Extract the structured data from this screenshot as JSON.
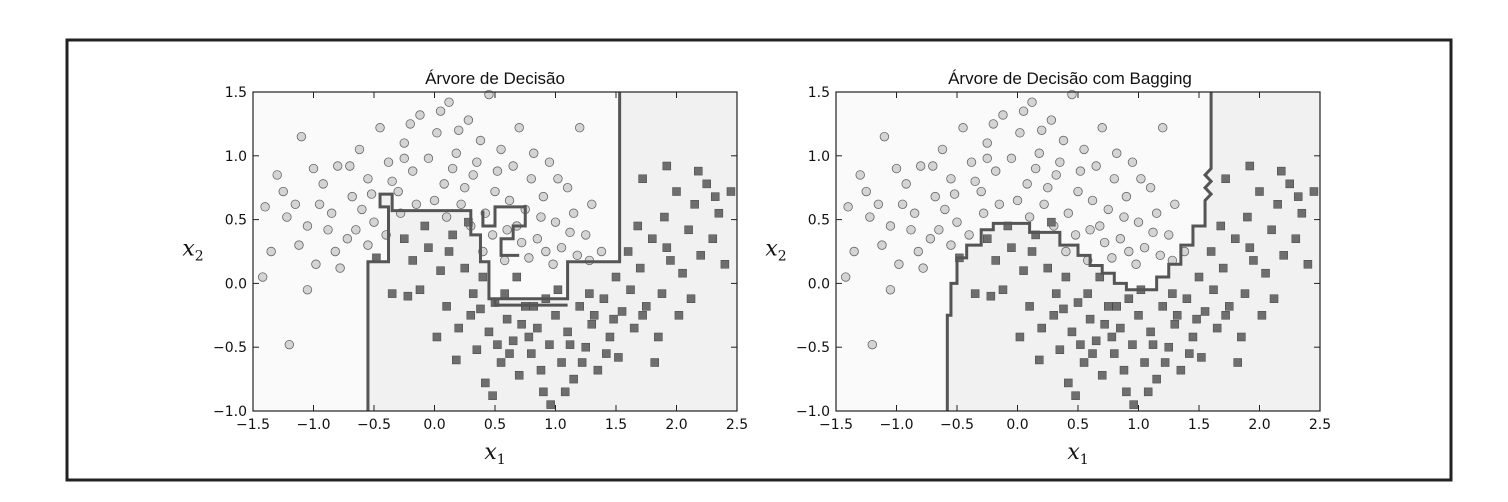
{
  "chart_data": [
    {
      "type": "scatter",
      "title": "Árvore de Decisão",
      "xlabel": "x",
      "xlabel_sub": "1",
      "ylabel": "x",
      "ylabel_sub": "2",
      "xlim": [
        -1.5,
        2.5
      ],
      "ylim": [
        -1.0,
        1.5
      ],
      "xticks": [
        "−1.5",
        "−1.0",
        "−0.5",
        "0.0",
        "0.5",
        "1.0",
        "1.5",
        "2.0",
        "2.5"
      ],
      "yticks": [
        "−1.0",
        "−0.5",
        "0.0",
        "0.5",
        "1.0",
        "1.5"
      ],
      "grid": false,
      "decision_boundary": [
        [
          -0.55,
          -1.0
        ],
        [
          -0.55,
          0.17
        ],
        [
          -0.38,
          0.17
        ],
        [
          -0.38,
          0.6
        ],
        [
          -0.45,
          0.6
        ],
        [
          -0.45,
          0.7
        ],
        [
          -0.35,
          0.7
        ],
        [
          -0.35,
          0.57
        ],
        [
          0.3,
          0.57
        ],
        [
          0.3,
          0.38
        ],
        [
          0.38,
          0.38
        ],
        [
          0.38,
          0.17
        ],
        [
          0.45,
          0.17
        ],
        [
          0.45,
          -0.12
        ],
        [
          1.1,
          -0.12
        ],
        [
          1.1,
          0.17
        ],
        [
          1.53,
          0.17
        ],
        [
          1.53,
          1.5
        ]
      ],
      "boundary_islands": [
        [
          [
            0.4,
            0.57
          ],
          [
            0.4,
            0.45
          ],
          [
            0.5,
            0.45
          ],
          [
            0.5,
            0.6
          ],
          [
            0.75,
            0.6
          ],
          [
            0.75,
            0.45
          ],
          [
            0.65,
            0.45
          ],
          [
            0.65,
            0.35
          ],
          [
            0.55,
            0.35
          ],
          [
            0.55,
            0.22
          ],
          [
            0.7,
            0.22
          ]
        ],
        [
          [
            0.5,
            -0.12
          ],
          [
            0.5,
            -0.17
          ],
          [
            1.1,
            -0.17
          ]
        ]
      ]
    },
    {
      "type": "scatter",
      "title": "Árvore de Decisão com  Bagging",
      "xlabel": "x",
      "xlabel_sub": "1",
      "ylabel": "x",
      "ylabel_sub": "2",
      "xlim": [
        -1.5,
        2.5
      ],
      "ylim": [
        -1.0,
        1.5
      ],
      "xticks": [
        "−1.5",
        "−1.0",
        "−0.5",
        "0.0",
        "0.5",
        "1.0",
        "1.5",
        "2.0",
        "2.5"
      ],
      "yticks": [
        "−1.0",
        "−0.5",
        "0.0",
        "0.5",
        "1.0",
        "1.5"
      ],
      "grid": false,
      "decision_boundary": [
        [
          -0.58,
          -1.0
        ],
        [
          -0.58,
          -0.25
        ],
        [
          -0.55,
          -0.25
        ],
        [
          -0.55,
          0.0
        ],
        [
          -0.5,
          0.0
        ],
        [
          -0.5,
          0.2
        ],
        [
          -0.42,
          0.2
        ],
        [
          -0.42,
          0.3
        ],
        [
          -0.3,
          0.3
        ],
        [
          -0.3,
          0.42
        ],
        [
          -0.2,
          0.42
        ],
        [
          -0.2,
          0.47
        ],
        [
          0.1,
          0.47
        ],
        [
          0.1,
          0.4
        ],
        [
          0.35,
          0.4
        ],
        [
          0.35,
          0.3
        ],
        [
          0.5,
          0.3
        ],
        [
          0.5,
          0.22
        ],
        [
          0.6,
          0.22
        ],
        [
          0.6,
          0.14
        ],
        [
          0.7,
          0.14
        ],
        [
          0.7,
          0.08
        ],
        [
          0.8,
          0.08
        ],
        [
          0.8,
          0.0
        ],
        [
          0.9,
          0.0
        ],
        [
          0.9,
          -0.05
        ],
        [
          1.15,
          -0.05
        ],
        [
          1.15,
          0.05
        ],
        [
          1.25,
          0.05
        ],
        [
          1.25,
          0.15
        ],
        [
          1.35,
          0.15
        ],
        [
          1.35,
          0.3
        ],
        [
          1.45,
          0.3
        ],
        [
          1.45,
          0.45
        ],
        [
          1.55,
          0.45
        ],
        [
          1.55,
          0.65
        ],
        [
          1.6,
          0.7
        ],
        [
          1.55,
          0.75
        ],
        [
          1.6,
          0.8
        ],
        [
          1.55,
          0.85
        ],
        [
          1.6,
          0.9
        ],
        [
          1.6,
          1.5
        ]
      ],
      "boundary_islands": []
    }
  ],
  "scatter_points": {
    "class_0_marker": "circle",
    "class_1_marker": "square",
    "class_0_color": "#cfcfcf",
    "class_1_color": "#6e6e6e",
    "class_0": [
      [
        -1.42,
        0.05
      ],
      [
        -1.35,
        0.25
      ],
      [
        -1.22,
        0.52
      ],
      [
        -1.15,
        0.62
      ],
      [
        -1.1,
        1.15
      ],
      [
        -1.05,
        0.45
      ],
      [
        -0.98,
        0.15
      ],
      [
        -0.92,
        0.78
      ],
      [
        -0.85,
        0.55
      ],
      [
        -0.8,
        0.92
      ],
      [
        -0.72,
        0.35
      ],
      [
        -0.68,
        0.68
      ],
      [
        -0.62,
        1.05
      ],
      [
        -0.55,
        0.82
      ],
      [
        -0.5,
        0.48
      ],
      [
        -0.45,
        1.22
      ],
      [
        -0.38,
        0.95
      ],
      [
        -0.3,
        0.72
      ],
      [
        -0.25,
        1.1
      ],
      [
        -0.18,
        0.88
      ],
      [
        -0.12,
        1.32
      ],
      [
        -0.05,
        0.98
      ],
      [
        0.02,
        1.18
      ],
      [
        0.08,
        0.78
      ],
      [
        0.12,
        1.42
      ],
      [
        0.18,
        1.02
      ],
      [
        0.22,
        0.62
      ],
      [
        0.28,
        1.28
      ],
      [
        0.32,
        0.85
      ],
      [
        0.38,
        1.12
      ],
      [
        0.42,
        0.55
      ],
      [
        0.45,
        1.48
      ],
      [
        0.5,
        0.72
      ],
      [
        0.55,
        1.05
      ],
      [
        0.6,
        0.42
      ],
      [
        0.65,
        0.92
      ],
      [
        0.7,
        1.22
      ],
      [
        0.75,
        0.58
      ],
      [
        0.8,
        0.82
      ],
      [
        0.85,
        0.35
      ],
      [
        0.9,
        0.68
      ],
      [
        0.95,
        0.95
      ],
      [
        1.0,
        0.48
      ],
      [
        1.05,
        0.28
      ],
      [
        1.1,
        0.75
      ],
      [
        1.15,
        0.55
      ],
      [
        1.2,
        1.22
      ],
      [
        1.25,
        0.38
      ],
      [
        1.3,
        0.62
      ],
      [
        1.38,
        0.25
      ],
      [
        -1.3,
        0.85
      ],
      [
        -1.12,
        0.3
      ],
      [
        -0.95,
        0.62
      ],
      [
        -0.78,
        0.12
      ],
      [
        -0.6,
        0.58
      ],
      [
        -0.4,
        0.38
      ],
      [
        -0.2,
        1.25
      ],
      [
        0.0,
        0.65
      ],
      [
        0.15,
        0.9
      ],
      [
        0.35,
        0.95
      ],
      [
        0.48,
        0.38
      ],
      [
        0.62,
        0.65
      ],
      [
        0.72,
        0.32
      ],
      [
        0.88,
        0.52
      ],
      [
        1.02,
        0.82
      ],
      [
        1.18,
        0.22
      ],
      [
        -1.2,
        -0.48
      ],
      [
        -1.05,
        -0.05
      ],
      [
        -0.88,
        0.42
      ],
      [
        -0.7,
        0.92
      ],
      [
        -0.52,
        0.7
      ],
      [
        -0.35,
        0.8
      ],
      [
        -0.15,
        0.62
      ],
      [
        0.05,
        1.35
      ],
      [
        0.25,
        0.75
      ],
      [
        0.4,
        0.25
      ],
      [
        0.58,
        0.18
      ],
      [
        0.78,
        0.2
      ],
      [
        0.98,
        0.15
      ],
      [
        -1.25,
        0.72
      ],
      [
        -0.82,
        0.25
      ],
      [
        -0.65,
        0.42
      ],
      [
        -0.28,
        0.55
      ],
      [
        0.1,
        0.52
      ],
      [
        0.3,
        0.45
      ],
      [
        0.52,
        0.88
      ],
      [
        0.68,
        0.45
      ],
      [
        0.92,
        0.25
      ],
      [
        1.12,
        0.4
      ],
      [
        1.28,
        0.18
      ],
      [
        -0.55,
        0.3
      ],
      [
        -1.4,
        0.6
      ],
      [
        -1.0,
        0.9
      ],
      [
        -0.25,
        0.98
      ],
      [
        0.2,
        1.2
      ],
      [
        0.82,
        1.02
      ]
    ],
    "class_1": [
      [
        -0.48,
        0.2
      ],
      [
        -0.35,
        -0.08
      ],
      [
        -0.25,
        0.35
      ],
      [
        -0.18,
        0.18
      ],
      [
        -0.12,
        -0.05
      ],
      [
        -0.05,
        0.28
      ],
      [
        0.05,
        0.1
      ],
      [
        0.1,
        -0.18
      ],
      [
        0.15,
        0.38
      ],
      [
        0.2,
        -0.35
      ],
      [
        0.25,
        0.12
      ],
      [
        0.3,
        -0.25
      ],
      [
        0.35,
        -0.52
      ],
      [
        0.4,
        0.05
      ],
      [
        0.45,
        -0.38
      ],
      [
        0.5,
        -0.15
      ],
      [
        0.55,
        -0.62
      ],
      [
        0.6,
        -0.28
      ],
      [
        0.65,
        -0.45
      ],
      [
        0.7,
        -0.72
      ],
      [
        0.75,
        -0.18
      ],
      [
        0.8,
        -0.55
      ],
      [
        0.85,
        -0.35
      ],
      [
        0.9,
        -0.85
      ],
      [
        0.95,
        -0.48
      ],
      [
        1.0,
        -0.25
      ],
      [
        1.05,
        -0.62
      ],
      [
        1.1,
        -0.38
      ],
      [
        1.15,
        -0.75
      ],
      [
        1.2,
        -0.18
      ],
      [
        1.25,
        -0.5
      ],
      [
        1.3,
        -0.32
      ],
      [
        1.35,
        -0.68
      ],
      [
        1.4,
        -0.12
      ],
      [
        1.45,
        -0.42
      ],
      [
        1.5,
        0.05
      ],
      [
        1.55,
        -0.22
      ],
      [
        1.6,
        0.25
      ],
      [
        1.65,
        -0.35
      ],
      [
        1.7,
        0.12
      ],
      [
        1.75,
        -0.18
      ],
      [
        1.8,
        0.35
      ],
      [
        1.85,
        -0.42
      ],
      [
        1.9,
        0.52
      ],
      [
        1.95,
        0.18
      ],
      [
        2.0,
        0.72
      ],
      [
        2.05,
        0.08
      ],
      [
        2.1,
        0.42
      ],
      [
        2.15,
        0.62
      ],
      [
        2.2,
        0.22
      ],
      [
        2.25,
        0.78
      ],
      [
        2.3,
        0.35
      ],
      [
        2.35,
        0.55
      ],
      [
        2.4,
        0.15
      ],
      [
        2.45,
        0.72
      ],
      [
        1.72,
        0.82
      ],
      [
        1.92,
        0.92
      ],
      [
        2.18,
        0.88
      ],
      [
        0.28,
        0.48
      ],
      [
        0.02,
        -0.42
      ],
      [
        0.18,
        -0.6
      ],
      [
        0.42,
        -0.78
      ],
      [
        0.62,
        -0.55
      ],
      [
        0.82,
        -0.18
      ],
      [
        1.02,
        -0.05
      ],
      [
        1.22,
        -0.62
      ],
      [
        1.42,
        -0.55
      ],
      [
        1.62,
        -0.05
      ],
      [
        1.82,
        -0.62
      ],
      [
        2.02,
        -0.25
      ],
      [
        0.48,
        -0.88
      ],
      [
        0.96,
        -0.95
      ],
      [
        0.38,
        -0.2
      ],
      [
        0.68,
        0.05
      ],
      [
        0.88,
        -0.68
      ],
      [
        1.08,
        -0.85
      ],
      [
        1.28,
        -0.08
      ],
      [
        1.48,
        -0.28
      ],
      [
        1.68,
        0.45
      ],
      [
        1.88,
        -0.08
      ],
      [
        -0.22,
        -0.1
      ],
      [
        -0.08,
        0.45
      ],
      [
        0.12,
        0.25
      ],
      [
        0.32,
        -0.08
      ],
      [
        0.52,
        -0.48
      ],
      [
        0.72,
        -0.32
      ],
      [
        0.92,
        -0.12
      ],
      [
        1.12,
        -0.48
      ],
      [
        1.32,
        -0.25
      ],
      [
        1.52,
        -0.58
      ],
      [
        1.72,
        -0.25
      ],
      [
        1.92,
        0.28
      ],
      [
        2.12,
        -0.12
      ],
      [
        2.32,
        0.68
      ],
      [
        0.58,
        -0.08
      ],
      [
        0.78,
        -0.42
      ]
    ]
  }
}
